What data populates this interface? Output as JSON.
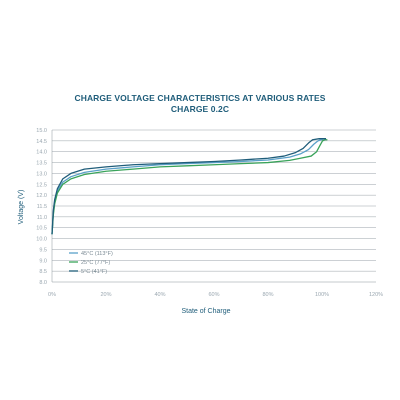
{
  "chart_data": {
    "type": "line",
    "title": "CHARGE VOLTAGE CHARACTERISTICS AT VARIOUS RATES",
    "subtitle": "CHARGE 0.2C",
    "xlabel": "State of Charge",
    "ylabel": "Voltage (V)",
    "xlim": [
      0,
      120
    ],
    "ylim": [
      8.0,
      15.0
    ],
    "x_ticks": [
      "0%",
      "20%",
      "40%",
      "60%",
      "80%",
      "100%",
      "120%"
    ],
    "y_ticks": [
      "8.0",
      "8.5",
      "9.0",
      "9.5",
      "10.0",
      "10.5",
      "11.0",
      "11.5",
      "12.0",
      "12.5",
      "13.0",
      "13.5",
      "14.0",
      "14.5",
      "15.0"
    ],
    "grid": "horizontal",
    "legend_position": "bottom-left",
    "series": [
      {
        "name": "45°C (113°F)",
        "color": "#5aa0c8",
        "points": [
          [
            0,
            10.2
          ],
          [
            0.5,
            11.2
          ],
          [
            1,
            11.7
          ],
          [
            2,
            12.2
          ],
          [
            4,
            12.6
          ],
          [
            7,
            12.85
          ],
          [
            12,
            13.05
          ],
          [
            20,
            13.2
          ],
          [
            30,
            13.3
          ],
          [
            40,
            13.4
          ],
          [
            50,
            13.45
          ],
          [
            60,
            13.5
          ],
          [
            70,
            13.55
          ],
          [
            80,
            13.62
          ],
          [
            88,
            13.75
          ],
          [
            92,
            13.9
          ],
          [
            95,
            14.1
          ],
          [
            97,
            14.35
          ],
          [
            98.5,
            14.5
          ],
          [
            99.5,
            14.55
          ],
          [
            100.5,
            14.55
          ]
        ]
      },
      {
        "name": "25°C (77°F)",
        "color": "#3aa35a",
        "points": [
          [
            0,
            10.2
          ],
          [
            0.5,
            11.1
          ],
          [
            1,
            11.6
          ],
          [
            2,
            12.1
          ],
          [
            4,
            12.5
          ],
          [
            7,
            12.75
          ],
          [
            12,
            12.95
          ],
          [
            20,
            13.1
          ],
          [
            30,
            13.2
          ],
          [
            40,
            13.3
          ],
          [
            50,
            13.35
          ],
          [
            60,
            13.4
          ],
          [
            70,
            13.45
          ],
          [
            80,
            13.5
          ],
          [
            88,
            13.6
          ],
          [
            92,
            13.7
          ],
          [
            96,
            13.8
          ],
          [
            98,
            14.0
          ],
          [
            99.3,
            14.3
          ],
          [
            100.2,
            14.5
          ],
          [
            101,
            14.55
          ],
          [
            102,
            14.55
          ]
        ]
      },
      {
        "name": "5°C (41°F)",
        "color": "#1f5d7a",
        "points": [
          [
            0,
            10.2
          ],
          [
            0.5,
            11.3
          ],
          [
            1,
            11.8
          ],
          [
            2,
            12.3
          ],
          [
            4,
            12.75
          ],
          [
            7,
            13.0
          ],
          [
            12,
            13.2
          ],
          [
            20,
            13.3
          ],
          [
            30,
            13.4
          ],
          [
            40,
            13.45
          ],
          [
            50,
            13.5
          ],
          [
            60,
            13.55
          ],
          [
            70,
            13.62
          ],
          [
            80,
            13.7
          ],
          [
            86,
            13.8
          ],
          [
            90,
            13.95
          ],
          [
            93,
            14.15
          ],
          [
            95,
            14.4
          ],
          [
            96.5,
            14.55
          ],
          [
            99,
            14.6
          ],
          [
            101.5,
            14.6
          ]
        ]
      }
    ]
  }
}
